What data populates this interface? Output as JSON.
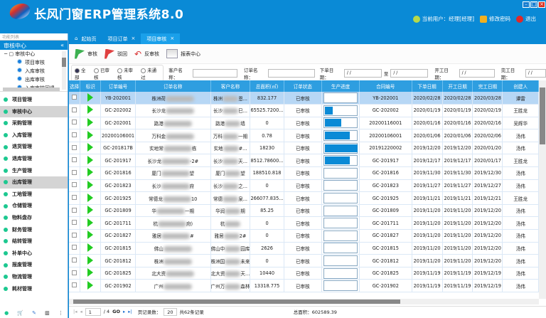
{
  "app": {
    "title": "长风门窗ERP管理系统8.0",
    "current_user": "当前用户：经理[经理]",
    "change_password": "修改密码",
    "logout": "退出"
  },
  "sidebar": {
    "search_placeholder": "功能列表",
    "section": "审核中心",
    "tree_root": "审核中心",
    "tree_items": [
      "项目审核",
      "入库审核",
      "出库审核",
      "入库审核回退"
    ],
    "nav": [
      "项目管理",
      "审核中心",
      "采购管理",
      "入库管理",
      "退货管理",
      "退库管理",
      "生产管理",
      "出库管理",
      "工地管理",
      "仓储管理",
      "物料盘存",
      "财务管理",
      "结转管理",
      "补单中心",
      "报废管理",
      "物流管理",
      "耗材管理"
    ]
  },
  "tabs": [
    {
      "label": "起始页"
    },
    {
      "label": "项目订单"
    },
    {
      "label": "项目审核"
    }
  ],
  "toolbar": {
    "approve": "审核",
    "reject": "驳回",
    "unapprove": "反审核",
    "report": "报表中心"
  },
  "filter": {
    "radios": [
      "全部",
      "已审核",
      "未审核",
      "未通过"
    ],
    "customer_label": "客户名称：",
    "order_label": "订单名称：",
    "order_date_label": "下单日期：",
    "to_label": "至",
    "start_date_label": "开工日期：",
    "finish_date_label": "完工日期：",
    "date_placeholder": "/ /"
  },
  "table": {
    "columns": [
      "选择",
      "标识",
      "订单编号",
      "订单名称",
      "客户名称",
      "总面积(㎡)",
      "订单状态",
      "生产进度",
      "合同编号",
      "下单日期",
      "开工日期",
      "完工日期",
      "创建人"
    ],
    "rows": [
      {
        "no": "YB-202001",
        "name_a": "株洲荷",
        "name_b": "",
        "cust_a": "株洲",
        "cust_b": "恩...",
        "area": "832.177",
        "status": "已审核",
        "progress": 0,
        "contract": "YB-202001",
        "order": "2020/02/28",
        "start": "2020/02/28",
        "finish": "2020/03/28",
        "creator": "谭雷"
      },
      {
        "no": "GC-202002",
        "name_a": "长沙龙",
        "name_b": "",
        "cust_a": "长沙",
        "cust_b": "巳...",
        "area": "65525.7200...",
        "status": "已审核",
        "progress": 0.23,
        "contract": "GC-202002",
        "order": "2020/01/19",
        "start": "2020/01/19",
        "finish": "2020/02/19",
        "creator": "王胜龙"
      },
      {
        "no": "GC-202001",
        "name_a": "路港",
        "name_b": "",
        "cust_a": "路港",
        "cust_b": "墙",
        "area": "0",
        "status": "已审核",
        "progress": 0.5,
        "contract": "20200116001",
        "order": "2020/01/16",
        "start": "2020/01/16",
        "finish": "2020/02/16",
        "creator": "吴辉华"
      },
      {
        "no": "20200106001",
        "name_a": "万科金",
        "name_b": "",
        "cust_a": "万科",
        "cust_b": "一期",
        "area": "0.78",
        "status": "已审核",
        "progress": 0.75,
        "contract": "20200106001",
        "order": "2020/01/06",
        "start": "2020/01/06",
        "finish": "2020/02/06",
        "creator": "汤伟"
      },
      {
        "no": "GC-201817B",
        "name_a": "实地常",
        "name_b": "栋",
        "cust_a": "实地",
        "cust_b": "#...",
        "area": "18230",
        "status": "已审核",
        "progress": 1,
        "contract": "20191220002",
        "order": "2019/12/20",
        "start": "2019/12/20",
        "finish": "2020/01/20",
        "creator": "汤伟"
      },
      {
        "no": "GC-201917",
        "name_a": "长沙龙",
        "name_b": "-2#",
        "cust_a": "长沙",
        "cust_b": "天...",
        "area": "8512.78600...",
        "status": "已审核",
        "progress": 0.75,
        "contract": "GC-201917",
        "order": "2019/12/17",
        "start": "2019/12/17",
        "finish": "2020/01/17",
        "creator": "王胜龙"
      },
      {
        "no": "GC-201816",
        "name_a": "厦门",
        "name_b": "望",
        "cust_a": "厦门",
        "cust_b": "望",
        "area": "188510.818",
        "status": "已审核",
        "progress": 0,
        "contract": "GC-201816",
        "order": "2019/11/30",
        "start": "2019/11/30",
        "finish": "2019/12/30",
        "creator": "汤伟"
      },
      {
        "no": "GC-201823",
        "name_a": "长沙",
        "name_b": "府",
        "cust_a": "长沙",
        "cust_b": "之...",
        "area": "0",
        "status": "已审核",
        "progress": 0,
        "contract": "GC-201823",
        "order": "2019/11/27",
        "start": "2019/11/27",
        "finish": "2019/12/27",
        "creator": "汤伟"
      },
      {
        "no": "GC-201925",
        "name_a": "常德龙",
        "name_b": "10",
        "cust_a": "常德",
        "cust_b": "泉...",
        "area": "266077.835...",
        "status": "已审核",
        "progress": 0,
        "contract": "GC-201925",
        "order": "2019/11/21",
        "start": "2019/11/21",
        "finish": "2019/12/21",
        "creator": "王胜龙"
      },
      {
        "no": "GC-201809",
        "name_a": "华",
        "name_b": "一期",
        "cust_a": "华润",
        "cust_b": "期",
        "area": "85.25",
        "status": "已审核",
        "progress": 0,
        "contract": "GC-201809",
        "order": "2019/11/20",
        "start": "2019/11/20",
        "finish": "2019/12/20",
        "creator": "汤伟"
      },
      {
        "no": "GC-201711",
        "name_a": "杭",
        "name_b": "府)",
        "cust_a": "杭",
        "cust_b": "",
        "area": "0",
        "status": "已审核",
        "progress": 0,
        "contract": "GC-201711",
        "order": "2019/11/20",
        "start": "2019/11/20",
        "finish": "2019/12/20",
        "creator": "汤伟"
      },
      {
        "no": "GC-201827",
        "name_a": "雅居",
        "name_b": "#",
        "cust_a": "雅居",
        "cust_b": "2#",
        "area": "0",
        "status": "已审核",
        "progress": 0,
        "contract": "GC-201827",
        "order": "2019/11/20",
        "start": "2019/11/20",
        "finish": "2019/12/20",
        "creator": "汤伟"
      },
      {
        "no": "GC-201815",
        "name_a": "佛山",
        "name_b": "",
        "cust_a": "佛山中",
        "cust_b": "园库",
        "area": "2626",
        "status": "已审核",
        "progress": 0,
        "contract": "GC-201815",
        "order": "2019/11/20",
        "start": "2019/11/20",
        "finish": "2019/12/20",
        "creator": "汤伟"
      },
      {
        "no": "GC-201812",
        "name_a": "株洲",
        "name_b": "",
        "cust_a": "株洲国",
        "cust_b": "未来",
        "area": "0",
        "status": "已审核",
        "progress": 0,
        "contract": "GC-201812",
        "order": "2019/11/20",
        "start": "2019/11/20",
        "finish": "2019/12/20",
        "creator": "汤伟"
      },
      {
        "no": "GC-201825",
        "name_a": "北大资",
        "name_b": "",
        "cust_a": "北大资",
        "cust_b": "天...",
        "area": "10440",
        "status": "已审核",
        "progress": 0,
        "contract": "GC-201825",
        "order": "2019/11/19",
        "start": "2019/11/19",
        "finish": "2019/12/19",
        "creator": "汤伟"
      },
      {
        "no": "GC-201902",
        "name_a": "广州",
        "name_b": "",
        "cust_a": "广州万",
        "cust_b": "森林",
        "area": "13318.775",
        "status": "已审核",
        "progress": 0,
        "contract": "GC-201902",
        "order": "2019/11/19",
        "start": "2019/11/19",
        "finish": "2019/12/19",
        "creator": "汤伟"
      }
    ]
  },
  "pager": {
    "page": "1",
    "total_pages": "/ 4",
    "go": "GO",
    "page_size_label": "页记录数：",
    "page_size": "20",
    "total_records": "共62条记录",
    "total_area": "总面积：602589.39"
  },
  "colors": {
    "brand": "#0a8ad6",
    "header_row": "#2e9ee0",
    "selected_row": "#b7d7f5",
    "progress": "#0a8ad6",
    "flag_green": "#3cb050"
  }
}
